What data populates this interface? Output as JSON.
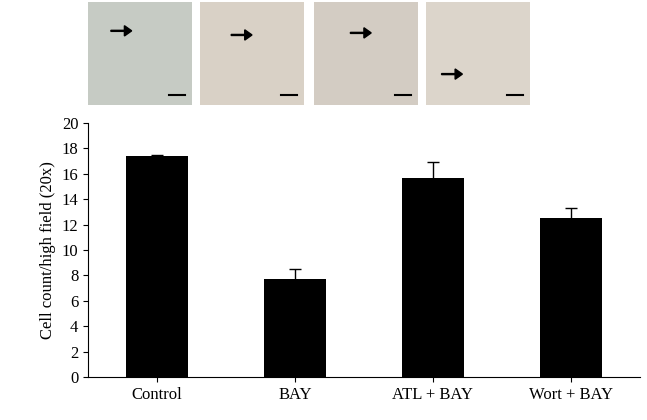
{
  "chart_data": {
    "type": "bar",
    "categories": [
      "Control",
      "BAY",
      "ATL + BAY",
      "Wort + BAY"
    ],
    "values": [
      17.4,
      7.7,
      15.7,
      12.5
    ],
    "error": [
      0.1,
      0.8,
      1.2,
      0.8
    ],
    "color": "#000000",
    "y_label": "Cell count/high field (20x)",
    "ylim": [
      0,
      20
    ],
    "yticks": [
      0,
      2,
      4,
      6,
      8,
      10,
      12,
      14,
      16,
      18,
      20
    ],
    "grid": false
  }
}
